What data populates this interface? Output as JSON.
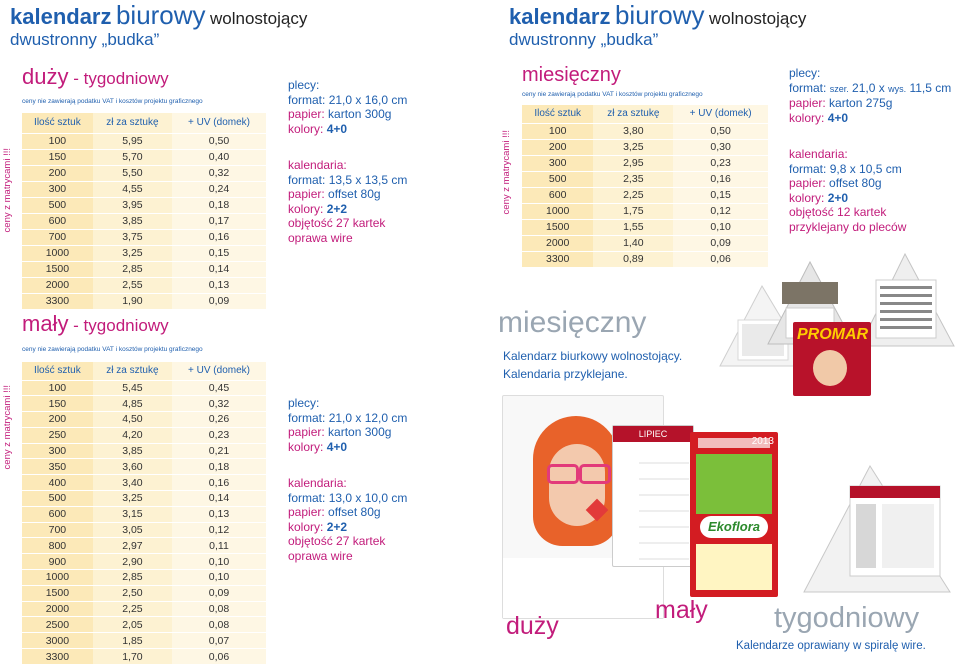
{
  "header_left": {
    "kal": "kalendarz",
    "bi": "biurowy",
    "wol": "wolnostojący",
    "sub": "dwustronny „budka”"
  },
  "header_right": {
    "kal": "kalendarz",
    "bi": "biurowy",
    "wol": "wolnostojący",
    "sub": "dwustronny „budka”"
  },
  "vertical_note": "ceny z matrycami !!!",
  "price_note": "ceny nie zawierają podatku VAT i kosztów projektu graficznego",
  "columns": [
    "Ilość sztuk",
    "zł za sztukę",
    "+ UV (domek)"
  ],
  "duzy": {
    "title": "duży",
    "dash": " - tygodniowy",
    "rows": [
      [
        "100",
        "5,95",
        "0,50"
      ],
      [
        "150",
        "5,70",
        "0,40"
      ],
      [
        "200",
        "5,50",
        "0,32"
      ],
      [
        "300",
        "4,55",
        "0,24"
      ],
      [
        "500",
        "3,95",
        "0,18"
      ],
      [
        "600",
        "3,85",
        "0,17"
      ],
      [
        "700",
        "3,75",
        "0,16"
      ],
      [
        "1000",
        "3,25",
        "0,15"
      ],
      [
        "1500",
        "2,85",
        "0,14"
      ],
      [
        "2000",
        "2,55",
        "0,13"
      ],
      [
        "3300",
        "1,90",
        "0,09"
      ]
    ],
    "plecy": {
      "head": "plecy:",
      "format_l": "format:",
      "format_v": "21,0 x 16,0 cm",
      "papier_l": "papier:",
      "papier_v": "karton 300g",
      "kolory_l": "kolory:",
      "kolory_v": "4+0"
    },
    "kal": {
      "head": "kalendaria:",
      "format_l": "format:",
      "format_v": "13,5 x 13,5 cm",
      "papier_l": "papier:",
      "papier_v": "offset 80g",
      "kolory_l": "kolory:",
      "kolory_v": "2+2",
      "objetosc": "objętość 27 kartek",
      "oprawa": "oprawa wire"
    }
  },
  "maly": {
    "title": "mały",
    "dash": " - tygodniowy",
    "rows": [
      [
        "100",
        "5,45",
        "0,45"
      ],
      [
        "150",
        "4,85",
        "0,32"
      ],
      [
        "200",
        "4,50",
        "0,26"
      ],
      [
        "250",
        "4,20",
        "0,23"
      ],
      [
        "300",
        "3,85",
        "0,21"
      ],
      [
        "350",
        "3,60",
        "0,18"
      ],
      [
        "400",
        "3,40",
        "0,16"
      ],
      [
        "500",
        "3,25",
        "0,14"
      ],
      [
        "600",
        "3,15",
        "0,13"
      ],
      [
        "700",
        "3,05",
        "0,12"
      ],
      [
        "800",
        "2,97",
        "0,11"
      ],
      [
        "900",
        "2,90",
        "0,10"
      ],
      [
        "1000",
        "2,85",
        "0,10"
      ],
      [
        "1500",
        "2,50",
        "0,09"
      ],
      [
        "2000",
        "2,25",
        "0,08"
      ],
      [
        "2500",
        "2,05",
        "0,08"
      ],
      [
        "3000",
        "1,85",
        "0,07"
      ],
      [
        "3300",
        "1,70",
        "0,06"
      ]
    ],
    "plecy": {
      "head": "plecy:",
      "format_l": "format:",
      "format_v": "21,0 x 12,0 cm",
      "papier_l": "papier:",
      "papier_v": "karton 300g",
      "kolory_l": "kolory:",
      "kolory_v": "4+0"
    },
    "kal": {
      "head": "kalendaria:",
      "format_l": "format:",
      "format_v": "13,0 x 10,0 cm",
      "papier_l": "papier:",
      "papier_v": "offset 80g",
      "kolory_l": "kolory:",
      "kolory_v": "2+2",
      "objetosc": "objętość 27 kartek",
      "oprawa": "oprawa wire"
    }
  },
  "miesieczny": {
    "title": "miesięczny",
    "rows": [
      [
        "100",
        "3,80",
        "0,50"
      ],
      [
        "200",
        "3,25",
        "0,30"
      ],
      [
        "300",
        "2,95",
        "0,23"
      ],
      [
        "500",
        "2,35",
        "0,16"
      ],
      [
        "600",
        "2,25",
        "0,15"
      ],
      [
        "1000",
        "1,75",
        "0,12"
      ],
      [
        "1500",
        "1,55",
        "0,10"
      ],
      [
        "2000",
        "1,40",
        "0,09"
      ],
      [
        "3300",
        "0,89",
        "0,06"
      ]
    ],
    "plecy": {
      "head": "plecy:",
      "format_l": "format:",
      "szer": "szer.",
      "szer_v": "21,0 x",
      "wys": "wys.",
      "wys_v": "11,5 cm",
      "papier_l": "papier:",
      "papier_v": "karton 275g",
      "kolory_l": "kolory:",
      "kolory_v": "4+0"
    },
    "kal": {
      "head": "kalendaria:",
      "format_l": "format:",
      "format_v": "9,8 x 10,5 cm",
      "papier_l": "papier:",
      "papier_v": "offset 80g",
      "kolory_l": "kolory:",
      "kolory_v": "2+0",
      "objetosc": "objętość 12 kartek",
      "przyklejany": "przyklejany do pleców"
    }
  },
  "gallery": {
    "miesieczny_big": "miesięczny",
    "desc1": "Kalendarz biurkowy wolnostojący.",
    "desc2": "Kalendaria przyklejane.",
    "duzy": "duży",
    "maly": "mały",
    "tygodniowy": "tygodniowy",
    "spirala": "Kalendarze oprawiany w spiralę wire.",
    "ekoflora": "Ekoflora",
    "lipiec": "LIPIEC",
    "year": "2013",
    "promar": "PROMAR"
  },
  "colors": {
    "blue": "#1f5fae",
    "magenta": "#c21c7b",
    "cell1": "#fce9b8",
    "cell2": "#fdf2d2",
    "cell3": "#fef7e4"
  }
}
